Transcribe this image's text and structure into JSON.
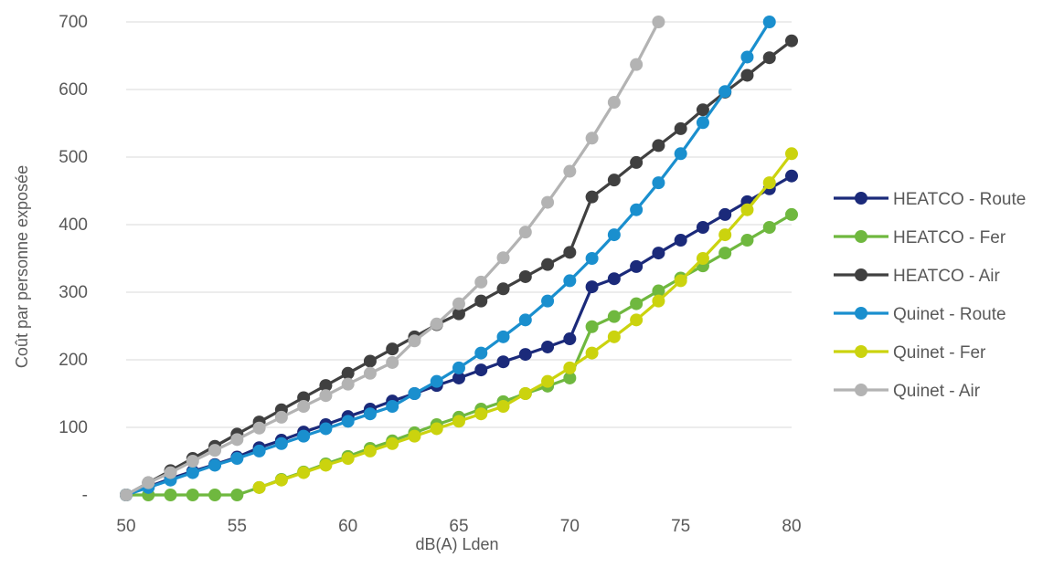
{
  "chart_data": {
    "type": "line",
    "title": "",
    "xlabel": "dB(A) Lden",
    "ylabel": "Coût par personne exposée",
    "xlim": [
      50,
      80
    ],
    "ylim": [
      0,
      700
    ],
    "x_ticks": [
      {
        "value": 50,
        "label": "50"
      },
      {
        "value": 55,
        "label": "55"
      },
      {
        "value": 60,
        "label": "60"
      },
      {
        "value": 65,
        "label": "65"
      },
      {
        "value": 70,
        "label": "70"
      },
      {
        "value": 75,
        "label": "75"
      },
      {
        "value": 80,
        "label": "80"
      }
    ],
    "y_ticks": [
      {
        "value": 0,
        "label": "-"
      },
      {
        "value": 100,
        "label": "100"
      },
      {
        "value": 200,
        "label": "200"
      },
      {
        "value": 300,
        "label": "300"
      },
      {
        "value": 400,
        "label": "400"
      },
      {
        "value": 500,
        "label": "500"
      },
      {
        "value": 600,
        "label": "600"
      },
      {
        "value": 700,
        "label": "700"
      }
    ],
    "grid": "horizontal",
    "legend_position": "right",
    "series": [
      {
        "name": "HEATCO - Route",
        "color": "#1b2a7a",
        "x": [
          50,
          51,
          52,
          53,
          54,
          55,
          56,
          57,
          58,
          59,
          60,
          61,
          62,
          63,
          64,
          65,
          66,
          67,
          68,
          69,
          70,
          71,
          72,
          73,
          74,
          75,
          76,
          77,
          78,
          79,
          80
        ],
        "values": [
          0,
          12,
          24,
          35,
          45,
          56,
          70,
          81,
          93,
          104,
          116,
          127,
          139,
          150,
          162,
          173,
          185,
          197,
          208,
          219,
          231,
          308,
          320,
          338,
          358,
          377,
          396,
          415,
          434,
          453,
          472
        ]
      },
      {
        "name": "HEATCO - Fer",
        "color": "#6fb83f",
        "x": [
          50,
          51,
          52,
          53,
          54,
          55,
          56,
          57,
          58,
          59,
          60,
          61,
          62,
          63,
          64,
          65,
          66,
          67,
          68,
          69,
          70,
          71,
          72,
          73,
          74,
          75,
          76,
          77,
          78,
          79,
          80
        ],
        "values": [
          0,
          0,
          0,
          0,
          0,
          0,
          11,
          23,
          34,
          46,
          57,
          69,
          80,
          92,
          104,
          115,
          127,
          138,
          150,
          161,
          173,
          249,
          264,
          283,
          302,
          321,
          339,
          358,
          377,
          396,
          415
        ]
      },
      {
        "name": "HEATCO - Air",
        "color": "#404040",
        "x": [
          50,
          51,
          52,
          53,
          54,
          55,
          56,
          57,
          58,
          59,
          60,
          61,
          62,
          63,
          64,
          65,
          66,
          67,
          68,
          69,
          70,
          71,
          72,
          73,
          74,
          75,
          76,
          77,
          78,
          79,
          80
        ],
        "values": [
          0,
          18,
          36,
          54,
          72,
          90,
          108,
          126,
          144,
          162,
          180,
          198,
          216,
          234,
          252,
          268,
          287,
          305,
          323,
          341,
          359,
          441,
          466,
          492,
          517,
          542,
          570,
          596,
          621,
          647,
          672
        ]
      },
      {
        "name": "Quinet - Route",
        "color": "#1a8fce",
        "x": [
          50,
          51,
          52,
          53,
          54,
          55,
          56,
          57,
          58,
          59,
          60,
          61,
          62,
          63,
          64,
          65,
          66,
          67,
          68,
          69,
          70,
          71,
          72,
          73,
          74,
          75,
          76,
          77,
          78,
          79
        ],
        "values": [
          0,
          11,
          22,
          33,
          44,
          54,
          65,
          76,
          87,
          98,
          109,
          120,
          131,
          150,
          168,
          188,
          210,
          234,
          259,
          287,
          317,
          350,
          385,
          422,
          462,
          505,
          551,
          597,
          648,
          700
        ]
      },
      {
        "name": "Quinet - Fer",
        "color": "#cbd30e",
        "x": [
          56,
          57,
          58,
          59,
          60,
          61,
          62,
          63,
          64,
          65,
          66,
          67,
          68,
          69,
          70,
          71,
          72,
          73,
          74,
          75,
          76,
          77,
          78,
          79,
          80
        ],
        "values": [
          11,
          22,
          33,
          44,
          54,
          65,
          76,
          87,
          98,
          109,
          120,
          131,
          150,
          168,
          188,
          210,
          234,
          259,
          287,
          317,
          350,
          385,
          422,
          462,
          505
        ]
      },
      {
        "name": "Quinet - Air",
        "color": "#b3b3b3",
        "x": [
          50,
          51,
          52,
          53,
          54,
          55,
          56,
          57,
          58,
          59,
          60,
          61,
          62,
          63,
          64,
          65,
          66,
          67,
          68,
          69,
          70,
          71,
          72,
          73,
          74
        ],
        "values": [
          0,
          18,
          33,
          50,
          66,
          82,
          99,
          115,
          131,
          147,
          164,
          180,
          196,
          228,
          253,
          283,
          315,
          351,
          389,
          433,
          479,
          528,
          581,
          637,
          700
        ]
      }
    ]
  }
}
